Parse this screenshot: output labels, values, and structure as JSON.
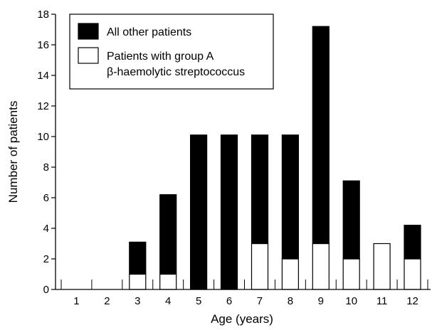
{
  "chart_data": {
    "type": "bar",
    "stacked": true,
    "xlabel": "Age (years)",
    "ylabel": "Number of patients",
    "ylim": [
      0,
      18
    ],
    "yticks": [
      0,
      2,
      4,
      6,
      8,
      10,
      12,
      14,
      16,
      18
    ],
    "categories": [
      "1",
      "2",
      "3",
      "4",
      "5",
      "6",
      "7",
      "8",
      "9",
      "10",
      "11",
      "12"
    ],
    "series": [
      {
        "name": "Patients with group A β-haemolytic streptococcus",
        "legend_lines": [
          "Patients with group A",
          "β-haemolytic streptococcus"
        ],
        "color": "#ffffff",
        "values": [
          0,
          0,
          1,
          1,
          0,
          0,
          3,
          2,
          3,
          2,
          3,
          2
        ]
      },
      {
        "name": "All other patients",
        "legend_lines": [
          "All other patients"
        ],
        "color": "#000000",
        "values": [
          0,
          0,
          2.1,
          5.2,
          10.1,
          10.1,
          7.1,
          8.1,
          14.2,
          5.1,
          0,
          2.2
        ]
      }
    ],
    "grid": false,
    "legend_position": "top-left"
  }
}
